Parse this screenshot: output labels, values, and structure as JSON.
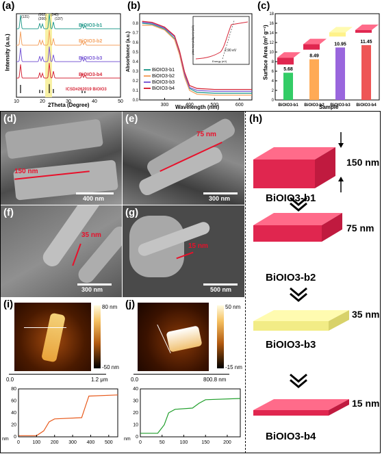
{
  "panels": {
    "a": {
      "label": "(a)",
      "ylabel": "Intensity (a.u.)",
      "xlabel": "2Theta (Degree)",
      "peaks": [
        "(121)",
        "(002)",
        "(200)",
        "(040)",
        "(137)"
      ],
      "ticks": [
        "10",
        "20",
        "30",
        "40",
        "50"
      ],
      "series": [
        "BiOIO3-b1",
        "BiOIO3-b2",
        "BiOIO3-b3",
        "BiOIO3-b4"
      ],
      "ref": "ICSD#262019 BiOIO3"
    },
    "b": {
      "label": "(b)",
      "ylabel": "Absorbance (a.u.)",
      "xlabel": "Wavelength (nm)",
      "xticks": [
        "300",
        "400",
        "500",
        "600"
      ],
      "yticks": [
        "0.0",
        "0.1",
        "0.2",
        "0.3",
        "0.4",
        "0.5",
        "0.6",
        "0.7",
        "0.8"
      ],
      "legend": [
        "BiOIO3-b1",
        "BiOIO3-b2",
        "BiOIO3-b3",
        "BiOIO3-b4"
      ],
      "inset_ylabel": "(Abs·hν)^(1/2)(eV)^(1/2)",
      "inset_xlabel": "Energy (eV)",
      "inset_value": "2.90 eV"
    },
    "c": {
      "label": "(c)",
      "ylabel": "Surface Area (m² g⁻¹)",
      "xlabel": "Sample",
      "yticks": [
        "0",
        "2",
        "4",
        "6",
        "8",
        "10",
        "12",
        "14",
        "16",
        "18"
      ]
    },
    "d": {
      "label": "(d)",
      "dim": "150 nm",
      "scale": "400 nm"
    },
    "e": {
      "label": "(e)",
      "dim": "75 nm",
      "scale": "300 nm"
    },
    "f": {
      "label": "(f)",
      "dim": "35 nm",
      "scale": "300 nm"
    },
    "g": {
      "label": "(g)",
      "dim": "15 nm",
      "scale": "500 nm"
    },
    "h": {
      "label": "(h)",
      "items": [
        {
          "name": "BiOIO3-b1",
          "thick": "150 nm"
        },
        {
          "name": "BiOIO3-b2",
          "thick": "75 nm"
        },
        {
          "name": "BiOIO3-b3",
          "thick": "35 nm"
        },
        {
          "name": "BiOIO3-b4",
          "thick": "15 nm"
        }
      ]
    },
    "i": {
      "label": "(i)",
      "cb_top": "80 nm",
      "cb_bot": "-50 nm",
      "x0": "0.0",
      "x1": "1.2 μm",
      "prof_y": [
        "0",
        "20",
        "40",
        "60",
        "80"
      ],
      "prof_x": [
        "0",
        "100",
        "200",
        "300",
        "400",
        "500"
      ],
      "unit": "nm"
    },
    "j": {
      "label": "(j)",
      "cb_top": "50 nm",
      "cb_bot": "-15 nm",
      "x0": "0.0",
      "x1": "800.8 nm",
      "prof_y": [
        "0",
        "10",
        "20",
        "30",
        "40"
      ],
      "prof_x": [
        "0",
        "50",
        "100",
        "150",
        "200"
      ],
      "unit": "nm"
    }
  },
  "chart_data": [
    {
      "type": "bar",
      "title": "",
      "categories": [
        "BiOIO3-b1",
        "BiOIO3-b2",
        "BiOIO3-b3",
        "BiOIO3-b4"
      ],
      "values": [
        5.68,
        8.49,
        10.95,
        11.45
      ],
      "ylabel": "Surface Area (m² g⁻¹)",
      "xlabel": "Sample",
      "ylim": [
        0,
        18
      ],
      "colors": [
        "#33cc66",
        "#ffaa55",
        "#9966dd",
        "#ee5555"
      ]
    },
    {
      "type": "line",
      "title": "",
      "xlabel": "Wavelength (nm)",
      "ylabel": "Absorbance (a.u.)",
      "xlim": [
        200,
        650
      ],
      "ylim": [
        0,
        0.9
      ],
      "series": [
        {
          "name": "BiOIO3-b1",
          "color": "#2a9d8f",
          "x": [
            210,
            250,
            300,
            340,
            360,
            380,
            400,
            430,
            500,
            600,
            650
          ],
          "y": [
            0.8,
            0.79,
            0.74,
            0.64,
            0.48,
            0.26,
            0.12,
            0.08,
            0.07,
            0.07,
            0.07
          ]
        },
        {
          "name": "BiOIO3-b2",
          "color": "#f4a261",
          "x": [
            210,
            250,
            300,
            340,
            360,
            380,
            400,
            430,
            500,
            600,
            650
          ],
          "y": [
            0.78,
            0.78,
            0.73,
            0.63,
            0.47,
            0.24,
            0.1,
            0.06,
            0.05,
            0.05,
            0.05
          ]
        },
        {
          "name": "BiOIO3-b3",
          "color": "#7b5cd6",
          "x": [
            210,
            250,
            300,
            340,
            360,
            380,
            400,
            430,
            500,
            600,
            650
          ],
          "y": [
            0.81,
            0.8,
            0.75,
            0.66,
            0.5,
            0.27,
            0.13,
            0.1,
            0.09,
            0.09,
            0.09
          ]
        },
        {
          "name": "BiOIO3-b4",
          "color": "#d62839",
          "x": [
            210,
            250,
            300,
            340,
            360,
            380,
            400,
            430,
            500,
            600,
            650
          ],
          "y": [
            0.82,
            0.81,
            0.76,
            0.67,
            0.51,
            0.29,
            0.15,
            0.12,
            0.11,
            0.11,
            0.11
          ]
        }
      ]
    },
    {
      "type": "line",
      "title": "",
      "xlabel": "",
      "ylabel": "",
      "xlim": [
        0,
        550
      ],
      "ylim": [
        0,
        80
      ],
      "series": [
        {
          "name": "",
          "color": "#e85a1c",
          "x": [
            0,
            100,
            140,
            170,
            200,
            350,
            370,
            390,
            550
          ],
          "y": [
            2,
            2,
            10,
            25,
            30,
            32,
            50,
            68,
            70
          ]
        }
      ]
    },
    {
      "type": "line",
      "title": "",
      "xlabel": "",
      "ylabel": "",
      "xlim": [
        0,
        230
      ],
      "ylim": [
        0,
        40
      ],
      "series": [
        {
          "name": "",
          "color": "#1f9e2a",
          "x": [
            0,
            40,
            55,
            65,
            80,
            120,
            135,
            150,
            230
          ],
          "y": [
            3,
            3,
            10,
            20,
            23,
            24,
            28,
            31,
            32
          ]
        }
      ]
    }
  ]
}
